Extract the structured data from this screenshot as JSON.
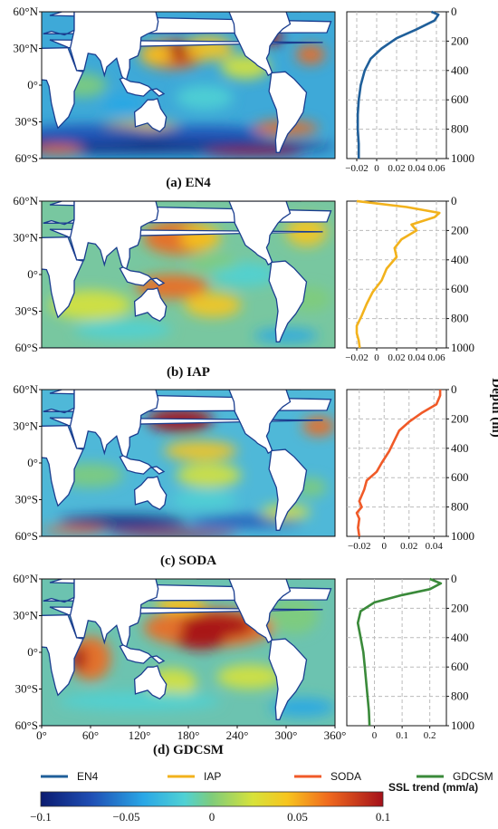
{
  "colors": {
    "EN4": "#1f5f9a",
    "IAP": "#f2b21c",
    "SODA": "#f05a28",
    "GDCSM": "#3a8a3a",
    "land": "#ffffff",
    "coast": "#1a3d8f"
  },
  "map_axes": {
    "lat_ticks": [
      "60°N",
      "30°N",
      "0°",
      "30°S",
      "60°S"
    ],
    "lon_ticks": [
      "0°",
      "60°",
      "120°",
      "180°",
      "240°",
      "300°",
      "360°"
    ]
  },
  "depth_label": "Depth (m)",
  "depth_ticks": [
    "0",
    "200",
    "400",
    "600",
    "800",
    "1000"
  ],
  "legend": {
    "items": [
      {
        "name": "EN4",
        "color": "#1f5f9a"
      },
      {
        "name": "IAP",
        "color": "#f2b21c"
      },
      {
        "name": "SODA",
        "color": "#f05a28"
      },
      {
        "name": "GDCSM",
        "color": "#3a8a3a"
      }
    ]
  },
  "colorbar": {
    "title": "SSL trend (mm/a)",
    "ticks": [
      "−0.1",
      "−0.05",
      "0",
      "0.05",
      "0.1"
    ],
    "range": [
      -0.1,
      0.1
    ]
  },
  "chart_data": [
    {
      "type": "heatmap",
      "panel": "a",
      "caption": "(a)  EN4",
      "ylim": [
        -60,
        60
      ],
      "xlim": [
        0,
        360
      ]
    },
    {
      "type": "line",
      "panel": "a",
      "series": [
        {
          "name": "EN4",
          "x": [
            0.055,
            0.062,
            0.058,
            0.04,
            0.02,
            0.005,
            -0.006,
            -0.012,
            -0.016,
            -0.018,
            -0.019,
            -0.019,
            -0.018,
            -0.018
          ],
          "depth": [
            0,
            20,
            60,
            120,
            180,
            250,
            320,
            400,
            500,
            600,
            700,
            800,
            900,
            1000
          ]
        }
      ],
      "xticks": [
        "−0.02",
        "0",
        "0.02",
        "0.04",
        "0.06"
      ],
      "xlim": [
        -0.03,
        0.07
      ],
      "ylim": [
        0,
        1000
      ]
    },
    {
      "type": "heatmap",
      "panel": "b",
      "caption": "(b) IAP",
      "ylim": [
        -60,
        60
      ],
      "xlim": [
        0,
        360
      ]
    },
    {
      "type": "line",
      "panel": "b",
      "series": [
        {
          "name": "IAP",
          "x": [
            -0.02,
            0.03,
            0.063,
            0.058,
            0.035,
            0.04,
            0.025,
            0.018,
            0.02,
            0.01,
            0.005,
            -0.004,
            -0.01,
            -0.015,
            -0.02,
            -0.02,
            -0.018,
            -0.017
          ],
          "depth": [
            0,
            40,
            80,
            110,
            160,
            200,
            260,
            320,
            380,
            460,
            540,
            620,
            700,
            780,
            850,
            900,
            950,
            1000
          ]
        }
      ],
      "xticks": [
        "−0.02",
        "0",
        "0.02",
        "0.04",
        "0.06"
      ],
      "xlim": [
        -0.03,
        0.07
      ],
      "ylim": [
        0,
        1000
      ]
    },
    {
      "type": "heatmap",
      "panel": "c",
      "caption": "(c) SODA",
      "ylim": [
        -60,
        60
      ],
      "xlim": [
        0,
        360
      ]
    },
    {
      "type": "line",
      "panel": "c",
      "series": [
        {
          "name": "SODA",
          "x": [
            0.045,
            0.045,
            0.042,
            0.03,
            0.02,
            0.012,
            0.008,
            0.004,
            -0.002,
            -0.006,
            -0.014,
            -0.016,
            -0.02,
            -0.018,
            -0.022,
            -0.02,
            -0.021,
            -0.02
          ],
          "depth": [
            0,
            40,
            100,
            160,
            220,
            280,
            350,
            420,
            500,
            560,
            620,
            680,
            760,
            800,
            840,
            880,
            940,
            1000
          ]
        }
      ],
      "xticks": [
        "−0.02",
        "0",
        "0.02",
        "0.04"
      ],
      "xlim": [
        -0.03,
        0.05
      ],
      "ylim": [
        0,
        1000
      ]
    },
    {
      "type": "heatmap",
      "panel": "d",
      "caption": "(d) GDCSM",
      "ylim": [
        -60,
        60
      ],
      "xlim": [
        0,
        360
      ]
    },
    {
      "type": "line",
      "panel": "d",
      "series": [
        {
          "name": "GDCSM",
          "x": [
            0.2,
            0.24,
            0.2,
            0.1,
            0.0,
            -0.05,
            -0.06,
            -0.05,
            -0.04,
            -0.035,
            -0.03,
            -0.025,
            -0.02,
            -0.018
          ],
          "depth": [
            0,
            30,
            70,
            110,
            160,
            220,
            300,
            400,
            500,
            600,
            700,
            800,
            900,
            1000
          ]
        }
      ],
      "xticks": [
        "0",
        "0.1",
        "0.2"
      ],
      "xlim": [
        -0.1,
        0.26
      ],
      "ylim": [
        0,
        1000
      ]
    }
  ]
}
